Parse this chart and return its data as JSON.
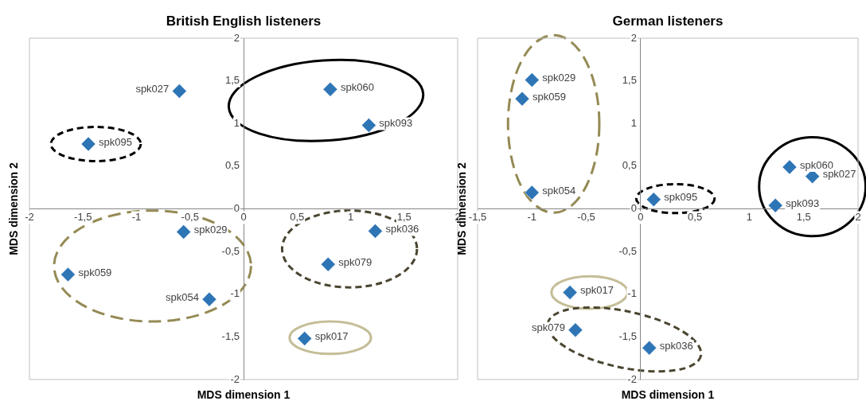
{
  "chart_data": [
    {
      "type": "scatter",
      "title": "British English listeners",
      "xlabel": "MDS dimension 1",
      "ylabel": "MDS dimension 2",
      "x": [
        -0.6,
        0.81,
        1.17,
        -1.45,
        -0.56,
        1.23,
        -1.64,
        0.79,
        -0.32,
        0.57
      ],
      "values": [
        1.38,
        1.4,
        0.98,
        0.76,
        -0.27,
        -0.26,
        -0.77,
        -0.65,
        -1.06,
        -1.52
      ],
      "color": "#2e75b6",
      "marker": "diamond",
      "grid": false,
      "legend": false,
      "xlim": [
        -2,
        2
      ],
      "ylim": [
        -2,
        2
      ],
      "xticks": [
        {
          "value": -2,
          "label": "-2"
        },
        {
          "value": -1.5,
          "label": "-1,5"
        },
        {
          "value": -1,
          "label": "-1"
        },
        {
          "value": -0.5,
          "label": "-0,5"
        },
        {
          "value": 0,
          "label": "0"
        },
        {
          "value": 0.5,
          "label": "0,5"
        },
        {
          "value": 1,
          "label": "1"
        },
        {
          "value": 1.5,
          "label": "1,5"
        },
        {
          "value": 2,
          "label": "2"
        }
      ],
      "yticks": [
        {
          "value": -2,
          "label": "-2"
        },
        {
          "value": -1.5,
          "label": "-1,5"
        },
        {
          "value": -1,
          "label": "-1"
        },
        {
          "value": -0.5,
          "label": "-0,5"
        },
        {
          "value": 0,
          "label": "0"
        },
        {
          "value": 0.5,
          "label": "0,5"
        },
        {
          "value": 1,
          "label": "1"
        },
        {
          "value": 1.5,
          "label": "1,5"
        },
        {
          "value": 2,
          "label": "2"
        }
      ],
      "annotations": [
        {
          "text": "spk027",
          "x": -0.6,
          "y": 1.38
        },
        {
          "text": "spk060",
          "x": 0.81,
          "y": 1.4
        },
        {
          "text": "spk093",
          "x": 1.17,
          "y": 0.98
        },
        {
          "text": "spk095",
          "x": -1.45,
          "y": 0.76
        },
        {
          "text": "spk029",
          "x": -0.56,
          "y": -0.27
        },
        {
          "text": "spk036",
          "x": 1.23,
          "y": -0.26
        },
        {
          "text": "spk059",
          "x": -1.64,
          "y": -0.77
        },
        {
          "text": "spk079",
          "x": 0.79,
          "y": -0.65
        },
        {
          "text": "spk054",
          "x": -0.32,
          "y": -1.06
        },
        {
          "text": "spk017",
          "x": 0.57,
          "y": -1.52
        }
      ]
    },
    {
      "type": "scatter",
      "title": "German listeners",
      "xlabel": "MDS dimension 1",
      "ylabel": "MDS dimension 2",
      "x": [
        -1.0,
        -1.09,
        -1.0,
        0.12,
        1.37,
        1.58,
        1.24,
        -0.65,
        -0.6,
        0.08
      ],
      "values": [
        1.51,
        1.29,
        0.19,
        0.11,
        0.49,
        0.38,
        0.04,
        -0.98,
        -1.42,
        -1.63
      ],
      "color": "#2e75b6",
      "marker": "diamond",
      "grid": false,
      "legend": false,
      "xlim": [
        -1.5,
        2
      ],
      "ylim": [
        -2,
        2
      ],
      "xticks": [
        {
          "value": -1.5,
          "label": "-1,5"
        },
        {
          "value": -1,
          "label": "-1"
        },
        {
          "value": -0.5,
          "label": "-0,5"
        },
        {
          "value": 0,
          "label": "0"
        },
        {
          "value": 0.5,
          "label": "0,5"
        },
        {
          "value": 1,
          "label": "1"
        },
        {
          "value": 1.5,
          "label": "1,5"
        },
        {
          "value": 2,
          "label": "2"
        }
      ],
      "yticks": [
        {
          "value": -2,
          "label": "-2"
        },
        {
          "value": -1.5,
          "label": "-1,5"
        },
        {
          "value": -1,
          "label": "-1"
        },
        {
          "value": -0.5,
          "label": "-0,5"
        },
        {
          "value": 0,
          "label": "0"
        },
        {
          "value": 0.5,
          "label": "0,5"
        },
        {
          "value": 1,
          "label": "1"
        },
        {
          "value": 1.5,
          "label": "1,5"
        },
        {
          "value": 2,
          "label": "2"
        }
      ],
      "annotations": [
        {
          "text": "spk029",
          "x": -1.0,
          "y": 1.51
        },
        {
          "text": "spk059",
          "x": -1.09,
          "y": 1.29
        },
        {
          "text": "spk054",
          "x": -1.0,
          "y": 0.19
        },
        {
          "text": "spk095",
          "x": 0.12,
          "y": 0.11
        },
        {
          "text": "spk060",
          "x": 1.37,
          "y": 0.49
        },
        {
          "text": "spk027",
          "x": 1.58,
          "y": 0.38
        },
        {
          "text": "spk093",
          "x": 1.24,
          "y": 0.04
        },
        {
          "text": "spk017",
          "x": -0.65,
          "y": -0.98
        },
        {
          "text": "spk079",
          "x": -0.6,
          "y": -1.42
        },
        {
          "text": "spk036",
          "x": 0.08,
          "y": -1.63
        }
      ]
    }
  ]
}
